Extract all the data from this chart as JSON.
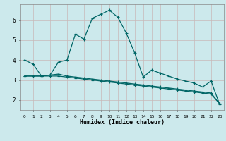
{
  "x": [
    0,
    1,
    2,
    3,
    4,
    5,
    6,
    7,
    8,
    9,
    10,
    11,
    12,
    13,
    14,
    15,
    16,
    17,
    18,
    19,
    20,
    21,
    22,
    23
  ],
  "line1": [
    4.0,
    3.8,
    3.2,
    3.25,
    3.9,
    4.0,
    5.3,
    5.05,
    6.1,
    6.3,
    6.5,
    6.15,
    5.35,
    4.35,
    3.15,
    3.5,
    3.35,
    3.2,
    3.05,
    2.95,
    2.85,
    2.65,
    2.95,
    1.8
  ],
  "line2": [
    3.2,
    3.2,
    3.2,
    3.25,
    3.3,
    3.2,
    3.15,
    3.1,
    3.05,
    3.0,
    2.95,
    2.9,
    2.85,
    2.8,
    2.75,
    2.7,
    2.65,
    2.6,
    2.55,
    2.5,
    2.45,
    2.4,
    2.35,
    1.82
  ],
  "line3": [
    3.2,
    3.2,
    3.2,
    3.2,
    3.2,
    3.15,
    3.1,
    3.05,
    3.0,
    2.95,
    2.9,
    2.85,
    2.8,
    2.75,
    2.7,
    2.65,
    2.6,
    2.55,
    2.5,
    2.45,
    2.4,
    2.35,
    2.3,
    1.82
  ],
  "line_color": "#006666",
  "bg_color": "#cce9ec",
  "grid_color_h": "#c8b8b8",
  "grid_color_v": "#c8b8b8",
  "xlabel": "Humidex (Indice chaleur)",
  "ylim": [
    1.5,
    6.8
  ],
  "xlim": [
    -0.5,
    23.5
  ],
  "yticks": [
    2,
    3,
    4,
    5,
    6
  ],
  "xticks": [
    0,
    1,
    2,
    3,
    4,
    5,
    6,
    7,
    8,
    9,
    10,
    11,
    12,
    13,
    14,
    15,
    16,
    17,
    18,
    19,
    20,
    21,
    22,
    23
  ],
  "marker": "+"
}
